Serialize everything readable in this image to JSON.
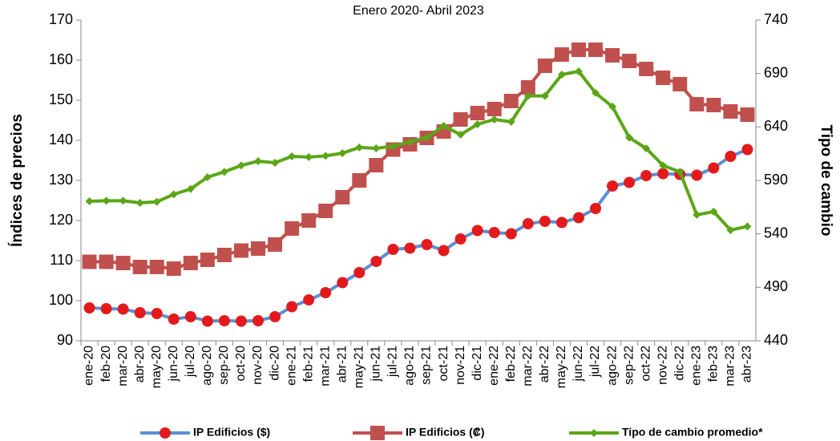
{
  "chart_data": {
    "type": "line",
    "title": "Enero 2020- Abril 2023",
    "ylabel": "Índices de precios",
    "y2label": "Tipo de cambio",
    "categories": [
      "ene-20",
      "feb-20",
      "mar-20",
      "abr-20",
      "may-20",
      "jun-20",
      "jul-20",
      "ago-20",
      "sep-20",
      "oct-20",
      "nov-20",
      "dic-20",
      "ene-21",
      "feb-21",
      "mar-21",
      "abr-21",
      "may-21",
      "jun-21",
      "jul-21",
      "ago-21",
      "sep-21",
      "oct-21",
      "nov-21",
      "dic-21",
      "ene-22",
      "feb-22",
      "mar-22",
      "abr-22",
      "may-22",
      "jun-22",
      "jul-22",
      "ago-22",
      "sep-22",
      "oct-22",
      "nov-22",
      "dic-22",
      "ene-23",
      "feb-23",
      "mar-23",
      "abr-23"
    ],
    "series": [
      {
        "name": "IP Edificios ($)",
        "color": "#5b8fd6",
        "marker_color": "#e31a1c",
        "marker": "circle",
        "values": [
          98.2,
          98,
          97.9,
          97,
          96.8,
          95.4,
          96,
          94.9,
          95,
          94.9,
          95,
          96,
          98.5,
          100.2,
          102,
          104.5,
          107,
          109.8,
          112.8,
          113.1,
          114,
          112.5,
          115.4,
          117.5,
          117,
          116.7,
          119.2,
          119.8,
          119.5,
          120.7,
          123,
          128.6,
          129.5,
          131.2,
          131.7,
          131.5,
          131.3,
          133.1,
          136,
          137.7
        ]
      },
      {
        "name": "IP Edificios (₡)",
        "color": "#c0504d",
        "marker_color": "#c0504d",
        "marker": "square",
        "values": [
          109.7,
          109.7,
          109.4,
          108.4,
          108.4,
          108,
          109.4,
          110.2,
          111.4,
          112.5,
          113,
          114,
          118,
          120,
          122.4,
          125.8,
          130,
          133.8,
          137.7,
          139,
          140.6,
          142.2,
          145.2,
          146.8,
          147.8,
          149.8,
          153.2,
          158.6,
          161.4,
          162.6,
          162.6,
          161.2,
          159.8,
          157.8,
          155.6,
          154,
          149,
          148.8,
          147.2,
          146.4
        ]
      },
      {
        "name": "Tipo de cambio promedio*",
        "color": "#5ba617",
        "marker_color": "#5ba617",
        "marker": "diamond",
        "axis": "y2",
        "values": [
          570.5,
          571,
          571,
          569,
          570,
          577,
          582,
          593,
          598,
          604,
          608,
          606.5,
          612.5,
          611.8,
          613,
          615.5,
          620.8,
          620,
          622,
          626,
          630,
          641,
          632.8,
          642.5,
          647,
          644.8,
          669,
          669,
          689,
          692,
          671.8,
          659,
          630,
          620,
          604,
          598,
          557.8,
          560.8,
          543.5,
          547
        ]
      }
    ],
    "ylim": [
      90,
      170
    ],
    "yticks": [
      90,
      100,
      110,
      120,
      130,
      140,
      150,
      160,
      170
    ],
    "y2lim": [
      440,
      740
    ],
    "y2ticks": [
      440,
      490,
      540,
      590,
      640,
      690,
      740
    ],
    "grid": false,
    "legend": "bottom"
  }
}
